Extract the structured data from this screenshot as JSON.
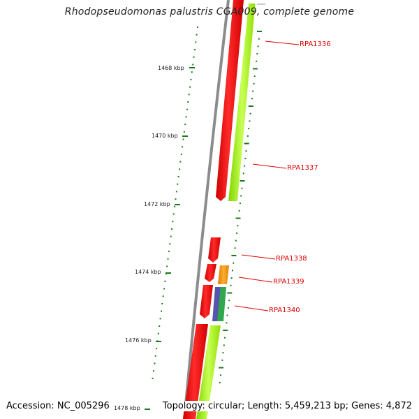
{
  "title": "Rhodopseudomonas palustris CGA009, complete genome",
  "footer": {
    "accession": "Accession: NC_005296",
    "topology": "Topology: circular; Length: 5,459,213 bp; Genes: 4,872"
  },
  "ticks": [
    "1468 kbp",
    "1470 kbp",
    "1472 kbp",
    "1474 kbp",
    "1476 kbp",
    "1478 kbp"
  ],
  "gene_labels": [
    "RPA1336",
    "RPA1337",
    "RPA1338",
    "RPA1339",
    "RPA1340"
  ],
  "colors": {
    "backbone": "#8c8c8c",
    "forward_strand": "#ff0000",
    "reverse_strand": "#a6ff1a",
    "tick": "#1a7a1a",
    "label": "#dd0000",
    "orange_feature": "#ff9900",
    "blue_feature": "#5555aa"
  }
}
